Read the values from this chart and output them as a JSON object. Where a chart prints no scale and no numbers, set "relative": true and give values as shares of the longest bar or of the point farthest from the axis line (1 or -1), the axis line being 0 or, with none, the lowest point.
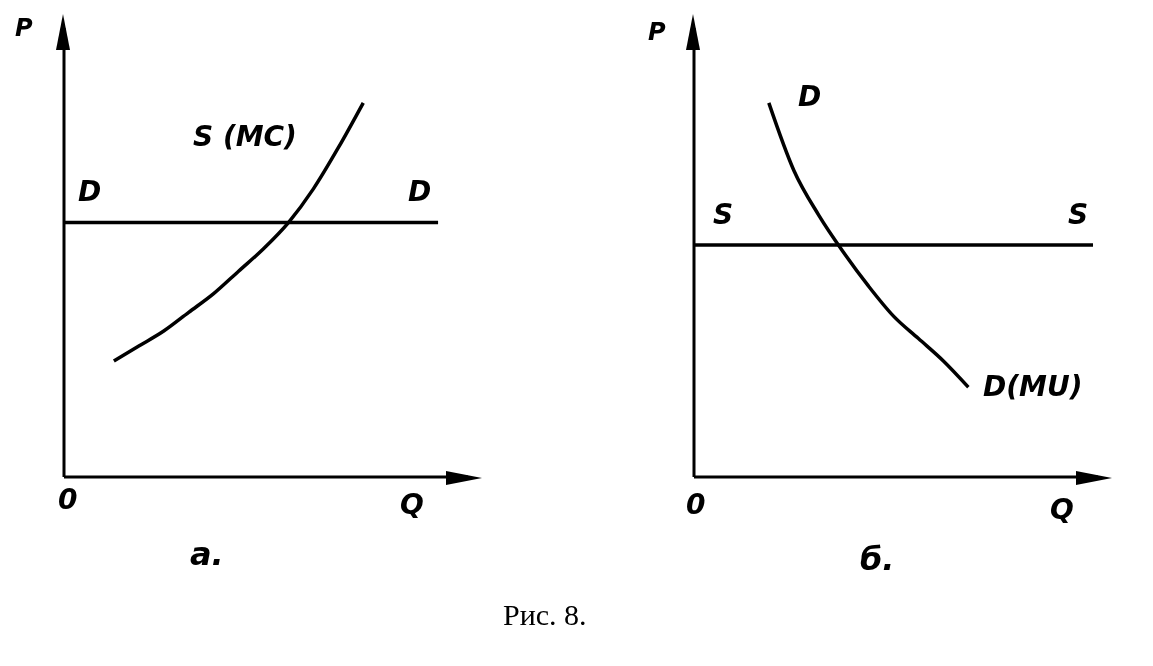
{
  "chart_data": [
    {
      "type": "line",
      "title": "а.",
      "xlabel": "Q",
      "ylabel": "P",
      "relative": true,
      "annotations": [
        "0",
        "Рис. 8."
      ],
      "categories": [
        null,
        null,
        null,
        null,
        null,
        null,
        null,
        null,
        null,
        null,
        null,
        null,
        null,
        null,
        null,
        null
      ],
      "series": [
        {
          "name": "D",
          "color": "#000000",
          "values": [
            0.68,
            0.68,
            0.68,
            0.68,
            0.68,
            0.68,
            0.68,
            0.68,
            0.68,
            0.68,
            0.68,
            0.68,
            0.68,
            0.68,
            0.68,
            0.68
          ]
        },
        {
          "name": "S (MC)",
          "color": "#000000",
          "values": [
            null,
            null,
            0.31,
            0.35,
            0.39,
            0.44,
            0.49,
            0.55,
            0.61,
            0.68,
            0.77,
            0.88,
            1,
            null,
            null,
            null
          ]
        }
      ]
    },
    {
      "type": "line",
      "title": "б.",
      "xlabel": "Q",
      "ylabel": "P",
      "relative": true,
      "annotations": [
        "D",
        "0"
      ],
      "categories": [
        null,
        null,
        null,
        null,
        null,
        null,
        null,
        null,
        null,
        null,
        null,
        null,
        null,
        null,
        null,
        null,
        null
      ],
      "series": [
        {
          "name": "S",
          "color": "#000000",
          "values": [
            0.62,
            0.62,
            0.62,
            0.62,
            0.62,
            0.62,
            0.62,
            0.62,
            0.62,
            0.62,
            0.62,
            0.62,
            0.62,
            0.62,
            0.62,
            0.62,
            0.62
          ]
        },
        {
          "name": "D(MU)",
          "color": "#000000",
          "values": [
            null,
            null,
            null,
            1,
            0.82,
            0.7,
            0.6,
            0.51,
            0.43,
            0.37,
            0.31,
            0.24,
            null,
            null,
            null,
            null,
            null
          ]
        }
      ]
    }
  ]
}
